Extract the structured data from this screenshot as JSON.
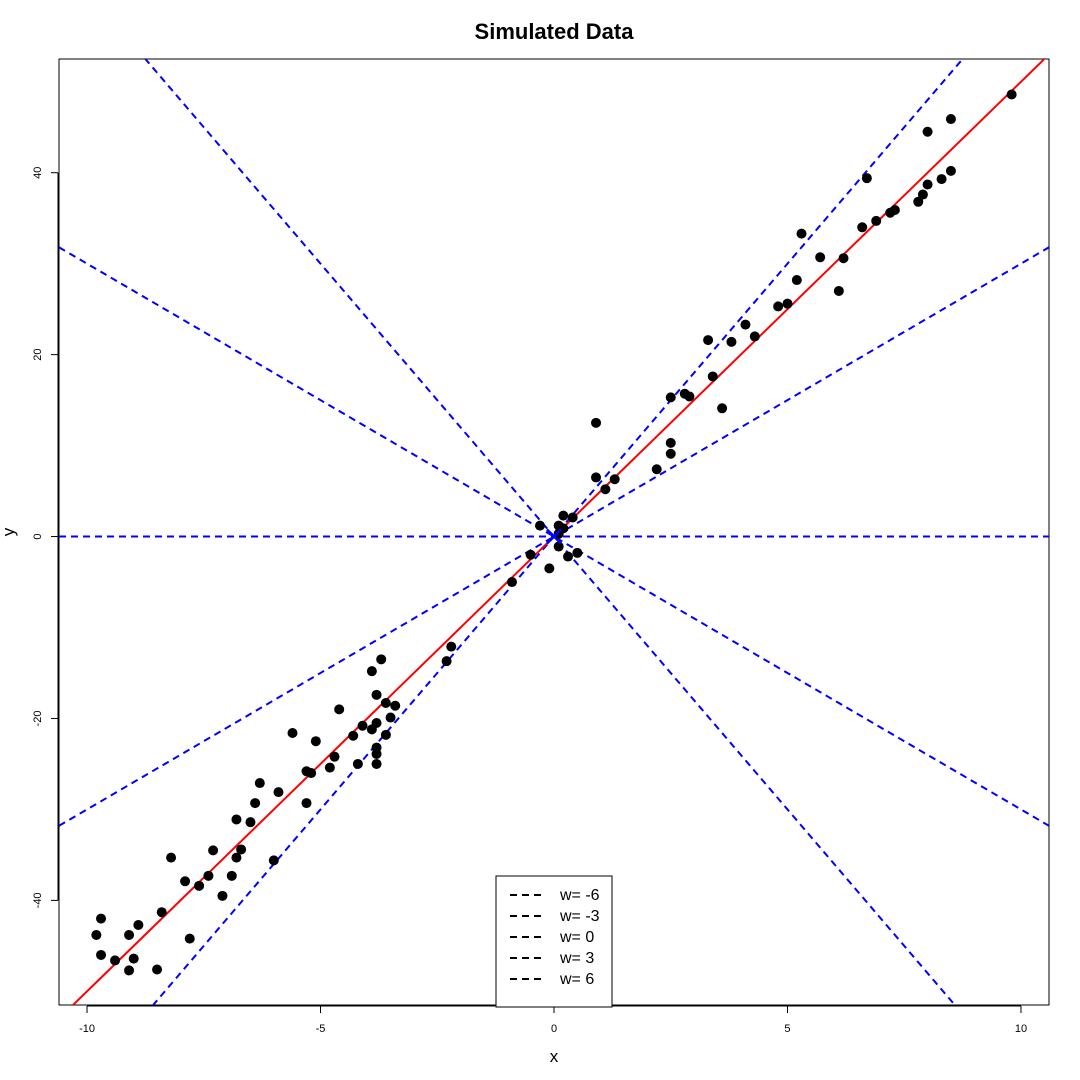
{
  "chart_data": {
    "type": "scatter",
    "title": "Simulated Data",
    "xlabel": "x",
    "ylabel": "y",
    "xlim": [
      -10.6,
      10.6
    ],
    "ylim": [
      -51.5,
      52.5
    ],
    "xticks": [
      -10,
      -5,
      0,
      5,
      10
    ],
    "yticks": [
      -40,
      -20,
      0,
      20,
      40
    ],
    "grid": false,
    "legend_placement": "bottom-center",
    "colors": {
      "points": "#000000",
      "fit_line": "#ff0000",
      "weight_lines": "#0000ff"
    },
    "points": [
      [
        -9.8,
        -43.8
      ],
      [
        -9.7,
        -46
      ],
      [
        -9.7,
        -42
      ],
      [
        -9.4,
        -46.6
      ],
      [
        -9.1,
        -47.7
      ],
      [
        -9.0,
        -46.4
      ],
      [
        -9.1,
        -43.8
      ],
      [
        -8.9,
        -42.7
      ],
      [
        -8.5,
        -47.6
      ],
      [
        -8.4,
        -41.3
      ],
      [
        -8.2,
        -35.3
      ],
      [
        -7.9,
        -37.9
      ],
      [
        -7.8,
        -44.2
      ],
      [
        -7.6,
        -38.4
      ],
      [
        -7.4,
        -37.3
      ],
      [
        -7.3,
        -34.5
      ],
      [
        -7.1,
        -39.5
      ],
      [
        -6.9,
        -37.3
      ],
      [
        -6.8,
        -35.3
      ],
      [
        -6.8,
        -31.1
      ],
      [
        -6.7,
        -34.4
      ],
      [
        -6.5,
        -31.4
      ],
      [
        -6.4,
        -29.3
      ],
      [
        -6.3,
        -27.1
      ],
      [
        -6.0,
        -35.6
      ],
      [
        -5.9,
        -28.1
      ],
      [
        -5.6,
        -21.6
      ],
      [
        -5.3,
        -25.8
      ],
      [
        -5.3,
        -29.3
      ],
      [
        -5.2,
        -26
      ],
      [
        -5.1,
        -22.5
      ],
      [
        -4.8,
        -25.4
      ],
      [
        -4.7,
        -24.2
      ],
      [
        -4.6,
        -19
      ],
      [
        -4.3,
        -21.9
      ],
      [
        -4.2,
        -25
      ],
      [
        -4.1,
        -20.8
      ],
      [
        -3.9,
        -14.8
      ],
      [
        -3.9,
        -21.2
      ],
      [
        -3.8,
        -23.9
      ],
      [
        -3.8,
        -23.2
      ],
      [
        -3.8,
        -17.4
      ],
      [
        -3.8,
        -20.5
      ],
      [
        -3.7,
        -13.5
      ],
      [
        -3.8,
        -25
      ],
      [
        -3.6,
        -18.3
      ],
      [
        -3.6,
        -21.8
      ],
      [
        -3.5,
        -19.9
      ],
      [
        -3.4,
        -18.6
      ],
      [
        -2.3,
        -13.7
      ],
      [
        -2.2,
        -12.1
      ],
      [
        -0.9,
        -5
      ],
      [
        -0.5,
        -2
      ],
      [
        -0.3,
        1.2
      ],
      [
        -0.1,
        -3.5
      ],
      [
        0.1,
        1.2
      ],
      [
        0.1,
        -1.1
      ],
      [
        0.1,
        0.3
      ],
      [
        0.2,
        0.9
      ],
      [
        0.2,
        2.3
      ],
      [
        0.3,
        -2.2
      ],
      [
        0.4,
        2.1
      ],
      [
        0.5,
        -1.8
      ],
      [
        0.9,
        12.5
      ],
      [
        0.9,
        6.5
      ],
      [
        1.1,
        5.2
      ],
      [
        1.3,
        6.3
      ],
      [
        2.2,
        7.4
      ],
      [
        2.5,
        15.3
      ],
      [
        2.5,
        10.3
      ],
      [
        2.5,
        9.1
      ],
      [
        2.8,
        15.7
      ],
      [
        2.9,
        15.4
      ],
      [
        3.3,
        21.6
      ],
      [
        3.4,
        17.6
      ],
      [
        3.6,
        14.1
      ],
      [
        3.8,
        21.4
      ],
      [
        4.1,
        23.3
      ],
      [
        4.3,
        22
      ],
      [
        4.8,
        25.3
      ],
      [
        5.0,
        25.6
      ],
      [
        5.2,
        28.2
      ],
      [
        5.3,
        33.3
      ],
      [
        5.7,
        30.7
      ],
      [
        6.1,
        27
      ],
      [
        6.2,
        30.6
      ],
      [
        6.6,
        34
      ],
      [
        6.7,
        39.4
      ],
      [
        6.9,
        34.7
      ],
      [
        7.2,
        35.6
      ],
      [
        7.3,
        35.9
      ],
      [
        7.8,
        36.8
      ],
      [
        7.9,
        37.6
      ],
      [
        8.0,
        38.7
      ],
      [
        8.0,
        44.5
      ],
      [
        8.3,
        39.3
      ],
      [
        8.5,
        40.2
      ],
      [
        8.5,
        45.9
      ],
      [
        9.8,
        48.6
      ]
    ],
    "fit_line": {
      "slope": 5,
      "intercept": 0
    },
    "weight_lines": [
      -6,
      -3,
      0,
      3,
      6
    ],
    "center_marker": [
      0,
      0
    ],
    "legend": [
      {
        "label": "w= -6"
      },
      {
        "label": "w= -3"
      },
      {
        "label": "w= 0"
      },
      {
        "label": "w= 3"
      },
      {
        "label": "w= 6"
      }
    ]
  }
}
